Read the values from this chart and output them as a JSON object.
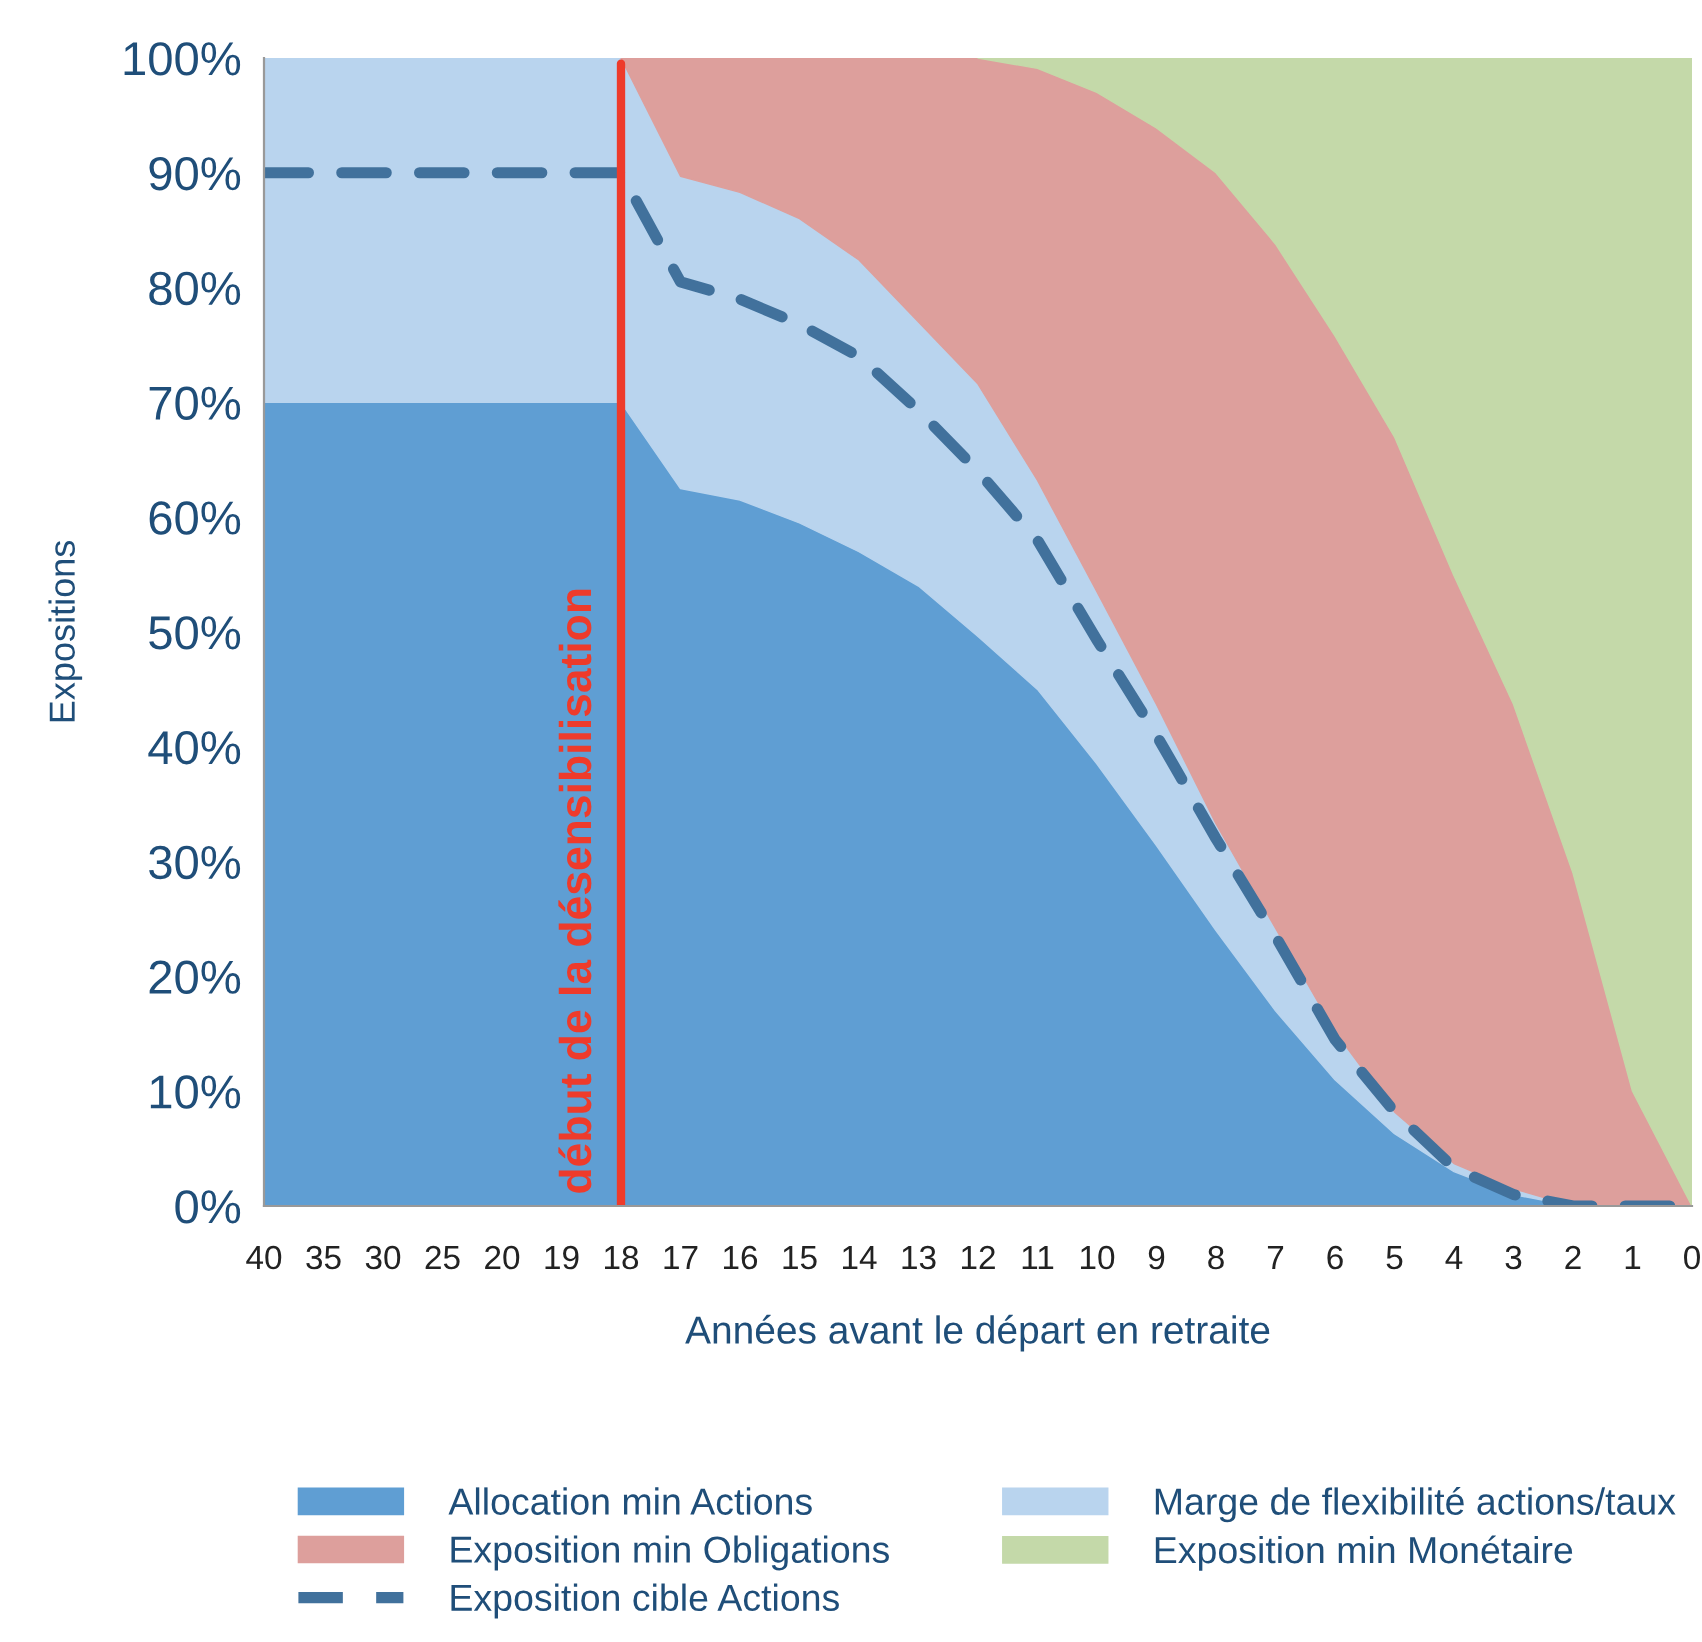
{
  "chart_data": {
    "type": "area",
    "stacked": true,
    "xlabel": "Années avant le départ en retraite",
    "ylabel": "Expositions",
    "categories": [
      "40",
      "35",
      "30",
      "25",
      "20",
      "19",
      "18",
      "17",
      "16",
      "15",
      "14",
      "13",
      "12",
      "11",
      "10",
      "9",
      "8",
      "7",
      "6",
      "5",
      "4",
      "3",
      "2",
      "1",
      "0"
    ],
    "ylim": [
      0,
      100
    ],
    "yticks": [
      {
        "value": 0,
        "label": "0%"
      },
      {
        "value": 10,
        "label": "10%"
      },
      {
        "value": 20,
        "label": "20%"
      },
      {
        "value": 30,
        "label": "30%"
      },
      {
        "value": 40,
        "label": "40%"
      },
      {
        "value": 50,
        "label": "50%"
      },
      {
        "value": 60,
        "label": "60%"
      },
      {
        "value": 70,
        "label": "70%"
      },
      {
        "value": 80,
        "label": "80%"
      },
      {
        "value": 90,
        "label": "90%"
      },
      {
        "value": 100,
        "label": "100%"
      }
    ],
    "series": [
      {
        "name": "Allocation min Actions",
        "color": "#5f9ed3",
        "values": [
          70,
          70,
          70,
          70,
          70,
          70,
          70,
          62.5,
          61.5,
          59.5,
          57,
          54,
          49.6,
          45,
          38.5,
          31.4,
          24,
          17,
          11,
          6.3,
          3,
          1,
          0,
          0,
          0
        ]
      },
      {
        "name": "Marge de flexibilité actions/taux",
        "color": "#b9d4ee",
        "values": [
          30,
          30,
          30,
          30,
          30,
          30,
          30,
          27.2,
          26.8,
          26.5,
          25.4,
          23,
          22,
          18.2,
          15,
          12.3,
          9.3,
          7.2,
          4.2,
          1.9,
          0.7,
          0.5,
          0,
          0,
          0
        ]
      },
      {
        "name": "Exposition min Obligations",
        "color": "#dd9f9c",
        "values": [
          null,
          null,
          null,
          null,
          null,
          null,
          0,
          10.3,
          11.7,
          14,
          17.6,
          23,
          28.4,
          35.9,
          43.5,
          50.2,
          56.7,
          59.6,
          60.6,
          58.8,
          51.2,
          42.2,
          29,
          10,
          0
        ]
      },
      {
        "name": "Exposition min Monétaire",
        "color": "#c4d9a9",
        "values": [
          null,
          null,
          null,
          null,
          null,
          null,
          null,
          null,
          null,
          null,
          null,
          null,
          0,
          0.9,
          3,
          6.1,
          10,
          16.2,
          24.2,
          33,
          45.1,
          56.3,
          71,
          90,
          100
        ]
      },
      {
        "name": "Exposition cible Actions",
        "type": "line",
        "line_style": "dashed",
        "color": "#41719c",
        "values": [
          90,
          90,
          90,
          90,
          90,
          90,
          90,
          80.5,
          79,
          76.8,
          74,
          69.3,
          64,
          58,
          49.3,
          41,
          32,
          23.5,
          14.5,
          8.2,
          3.3,
          1,
          0,
          0,
          0
        ]
      }
    ],
    "ref_lines": [
      {
        "axis": "x",
        "value": "18",
        "label": "début de la désensibilisation",
        "color": "#ee3b2b"
      }
    ],
    "grid": false,
    "legend": "bottom"
  }
}
